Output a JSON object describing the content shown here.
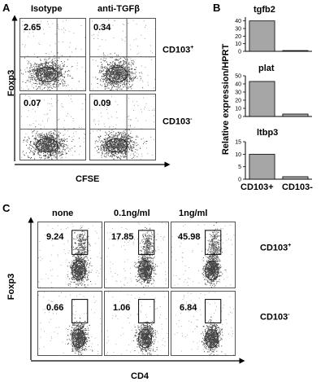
{
  "panel_a": {
    "letter": "A",
    "col_headers": [
      "Isotype",
      "anti-TGFβ"
    ],
    "row_labels": [
      "CD103",
      "CD103"
    ],
    "row_sups": [
      "+",
      "-"
    ],
    "y_axis": "Foxp3",
    "x_axis": "CFSE",
    "values": [
      "2.65",
      "0.34",
      "0.07",
      "0.09"
    ]
  },
  "panel_b": {
    "letter": "B",
    "y_axis": "Relative expression/HPRT",
    "x_categories": [
      "CD103+",
      "CD103-"
    ],
    "bar_color": "#a6a6a6"
  },
  "panel_c": {
    "letter": "C",
    "col_headers": [
      "none",
      "0.1ng/ml",
      "1ng/ml"
    ],
    "row_labels": [
      "CD103",
      "CD103"
    ],
    "row_sups": [
      "+",
      "-"
    ],
    "y_axis": "Foxp3",
    "x_axis": "CD4",
    "values": [
      "9.24",
      "17.85",
      "45.98",
      "0.66",
      "1.06",
      "6.84"
    ]
  },
  "chart_data": [
    {
      "type": "bar",
      "title": "tgfb2",
      "categories": [
        "CD103+",
        "CD103-"
      ],
      "values": [
        40,
        1
      ],
      "ylim": [
        0,
        45
      ],
      "yticks": [
        0,
        10,
        20,
        30,
        40
      ]
    },
    {
      "type": "bar",
      "title": "plat",
      "categories": [
        "CD103+",
        "CD103-"
      ],
      "values": [
        43,
        3
      ],
      "ylim": [
        0,
        50
      ],
      "yticks": [
        0,
        10,
        20,
        30,
        40,
        50
      ]
    },
    {
      "type": "bar",
      "title": "ltbp3",
      "categories": [
        "CD103+",
        "CD103-"
      ],
      "values": [
        10,
        1
      ],
      "ylim": [
        0,
        15
      ],
      "yticks": [
        0,
        5,
        10,
        15
      ]
    }
  ]
}
